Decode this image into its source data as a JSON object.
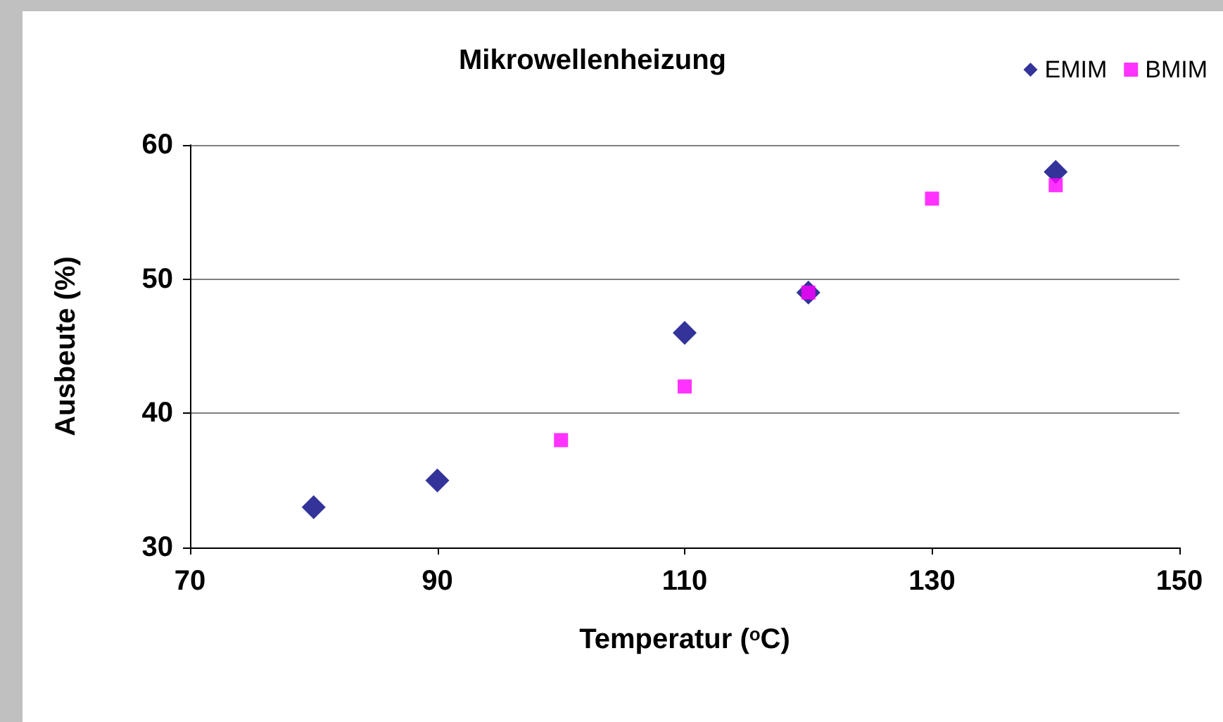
{
  "chart_data": {
    "type": "scatter",
    "title": "Mikrowellenheizung",
    "xlabel": "Temperatur ($^{o}$C)",
    "ylabel": "Ausbeute (%)",
    "series": [
      {
        "name": "EMIM",
        "color": "#000080",
        "marker": "diamond",
        "x": [
          80,
          90,
          110,
          120,
          140
        ],
        "values": [
          33,
          35,
          46,
          49,
          58
        ]
      },
      {
        "name": "BMIM",
        "color": "#ff00ff",
        "marker": "square",
        "x": [
          100,
          110,
          120,
          130,
          140
        ],
        "values": [
          38,
          42,
          49,
          56,
          57
        ]
      }
    ],
    "xlim": [
      70,
      150
    ],
    "xticks": [
      70,
      90,
      110,
      130,
      150
    ],
    "ylim": [
      30,
      60
    ],
    "yticks": [
      30,
      40,
      50,
      60
    ],
    "grid": "y",
    "legend": "top right"
  }
}
